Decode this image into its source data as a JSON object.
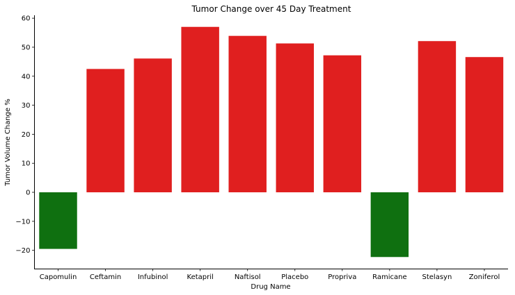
{
  "chart_data": {
    "type": "bar",
    "title": "Tumor Change over 45 Day Treatment",
    "xlabel": "Drug Name",
    "ylabel": "Tumor Volume Change %",
    "categories": [
      "Capomulin",
      "Ceftamin",
      "Infubinol",
      "Ketapril",
      "Naftisol",
      "Placebo",
      "Propriva",
      "Ramicane",
      "Stelasyn",
      "Zoniferol"
    ],
    "values": [
      -19.5,
      42.5,
      46.1,
      57.0,
      53.9,
      51.3,
      47.2,
      -22.3,
      52.1,
      46.6
    ],
    "ylim": [
      -26.3,
      61.0
    ],
    "yticks": [
      -20,
      -10,
      0,
      10,
      20,
      30,
      40,
      50,
      60
    ],
    "colors": {
      "positive": "#e01f1f",
      "negative": "#0f7010",
      "axis": "#000000"
    },
    "grid": false,
    "legend": false
  }
}
